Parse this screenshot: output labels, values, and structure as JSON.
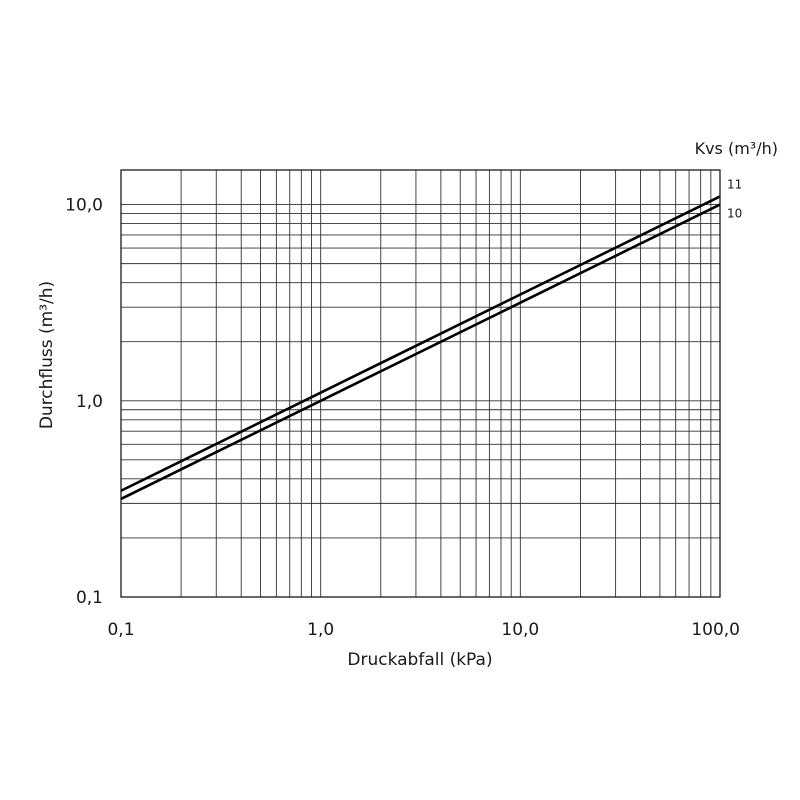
{
  "chart_data": {
    "type": "line",
    "x_scale": "log",
    "y_scale": "log",
    "xlim": [
      0.1,
      100
    ],
    "ylim": [
      0.1,
      15
    ],
    "xlabel": "Druckabfall (kPa)",
    "ylabel": "Durchfluss (m³/h)",
    "x_tick_values": [
      0.1,
      1,
      10,
      100
    ],
    "x_tick_labels": [
      "0,1",
      "1,0",
      "10,0",
      "100,0"
    ],
    "y_tick_values": [
      0.1,
      1,
      10
    ],
    "y_tick_labels": [
      "0,1",
      "1,0",
      "10,0"
    ],
    "legend_title": "Kvs (m³/h)",
    "grid": true,
    "series": [
      {
        "name": "11",
        "x": [
          0.1,
          1,
          10,
          100
        ],
        "y": [
          0.348,
          1.1,
          3.48,
          11.0
        ]
      },
      {
        "name": "10",
        "x": [
          0.1,
          1,
          10,
          100
        ],
        "y": [
          0.316,
          1.0,
          3.16,
          10.0
        ]
      }
    ]
  }
}
